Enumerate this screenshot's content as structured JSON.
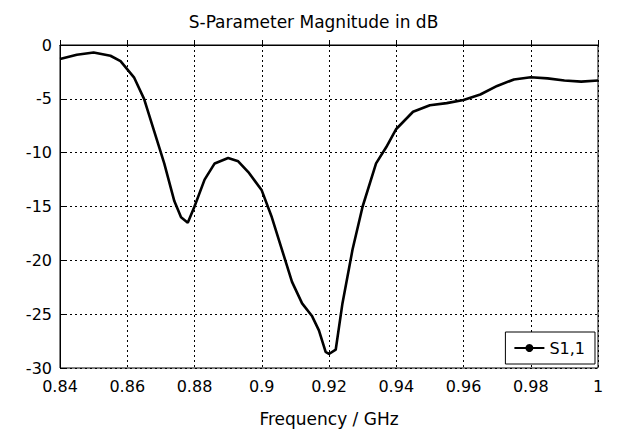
{
  "chart_data": {
    "type": "line",
    "title": "S-Parameter Magnitude in dB",
    "x_label": "Frequency / GHz",
    "x": [
      0.84,
      0.845,
      0.85,
      0.855,
      0.858,
      0.862,
      0.865,
      0.868,
      0.871,
      0.874,
      0.876,
      0.878,
      0.88,
      0.883,
      0.886,
      0.89,
      0.893,
      0.896,
      0.9,
      0.903,
      0.906,
      0.909,
      0.912,
      0.915,
      0.917,
      0.919,
      0.92,
      0.922,
      0.924,
      0.927,
      0.93,
      0.934,
      0.937,
      0.94,
      0.945,
      0.95,
      0.955,
      0.96,
      0.965,
      0.97,
      0.975,
      0.98,
      0.985,
      0.99,
      0.995,
      1.0
    ],
    "series": [
      {
        "name": "S1,1",
        "color": "#000000",
        "line_style": "solid",
        "values": [
          -1.3,
          -0.9,
          -0.7,
          -1.0,
          -1.5,
          -3.0,
          -5.0,
          -8.0,
          -11.0,
          -14.5,
          -16.0,
          -16.5,
          -15.0,
          -12.5,
          -11.0,
          -10.5,
          -10.8,
          -11.8,
          -13.5,
          -16.0,
          -19.0,
          -22.0,
          -24.0,
          -25.2,
          -26.5,
          -28.5,
          -28.7,
          -28.3,
          -24.0,
          -19.0,
          -15.0,
          -11.0,
          -9.5,
          -7.8,
          -6.2,
          -5.6,
          -5.4,
          -5.1,
          -4.6,
          -3.8,
          -3.2,
          -3.0,
          -3.1,
          -3.3,
          -3.4,
          -3.3
        ]
      }
    ],
    "xlim": [
      0.84,
      1
    ],
    "xticks": [
      0.84,
      0.86,
      0.88,
      0.9,
      0.92,
      0.94,
      0.96,
      0.98,
      1
    ],
    "ylim": [
      -30,
      0
    ],
    "yticks": [
      -30,
      -25,
      -20,
      -15,
      -10,
      -5,
      0
    ],
    "grid": true,
    "legend": "lower right"
  }
}
